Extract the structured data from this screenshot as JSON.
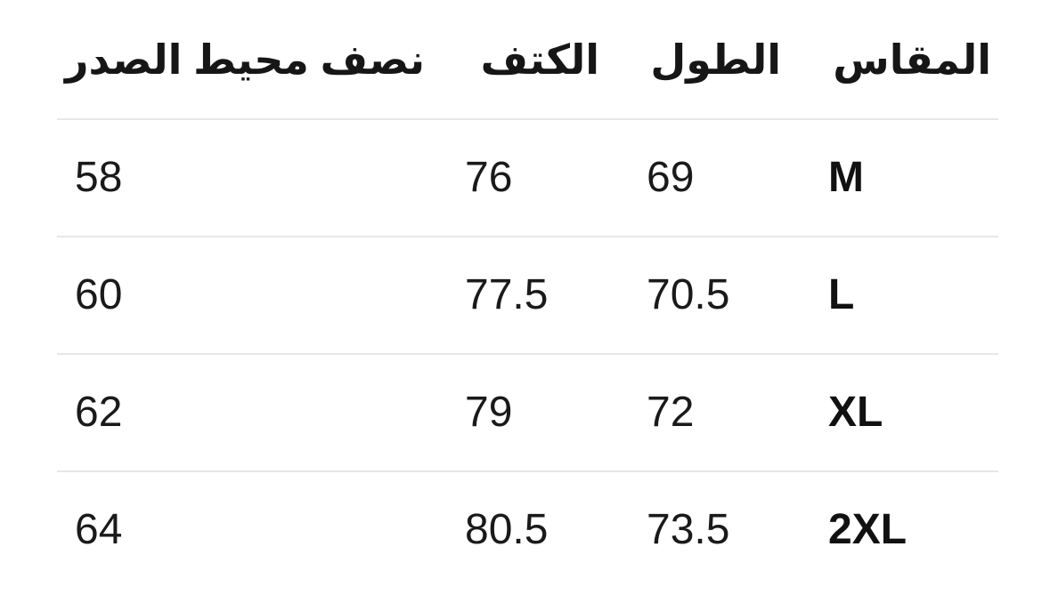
{
  "page": {
    "background": "#ffffff",
    "language": "ar",
    "direction": "rtl"
  },
  "size_chart": {
    "columns": [
      {
        "id": "size",
        "label": "المقاس"
      },
      {
        "id": "length",
        "label": "الطول"
      },
      {
        "id": "shoulder",
        "label": "الكتف"
      },
      {
        "id": "half_chest",
        "label": "نصف محيط الصدر"
      }
    ],
    "rows": [
      {
        "size": "M",
        "length": "69",
        "shoulder": "76",
        "half_chest": "58"
      },
      {
        "size": "L",
        "length": "70.5",
        "shoulder": "77.5",
        "half_chest": "60"
      },
      {
        "size": "XL",
        "length": "72",
        "shoulder": "79",
        "half_chest": "62"
      },
      {
        "size": "2XL",
        "length": "73.5",
        "shoulder": "80.5",
        "half_chest": "64"
      }
    ],
    "colors": {
      "text": "#1a1a1a",
      "header_text": "#161616",
      "divider": "#e7e7e9",
      "background": "#ffffff"
    }
  }
}
